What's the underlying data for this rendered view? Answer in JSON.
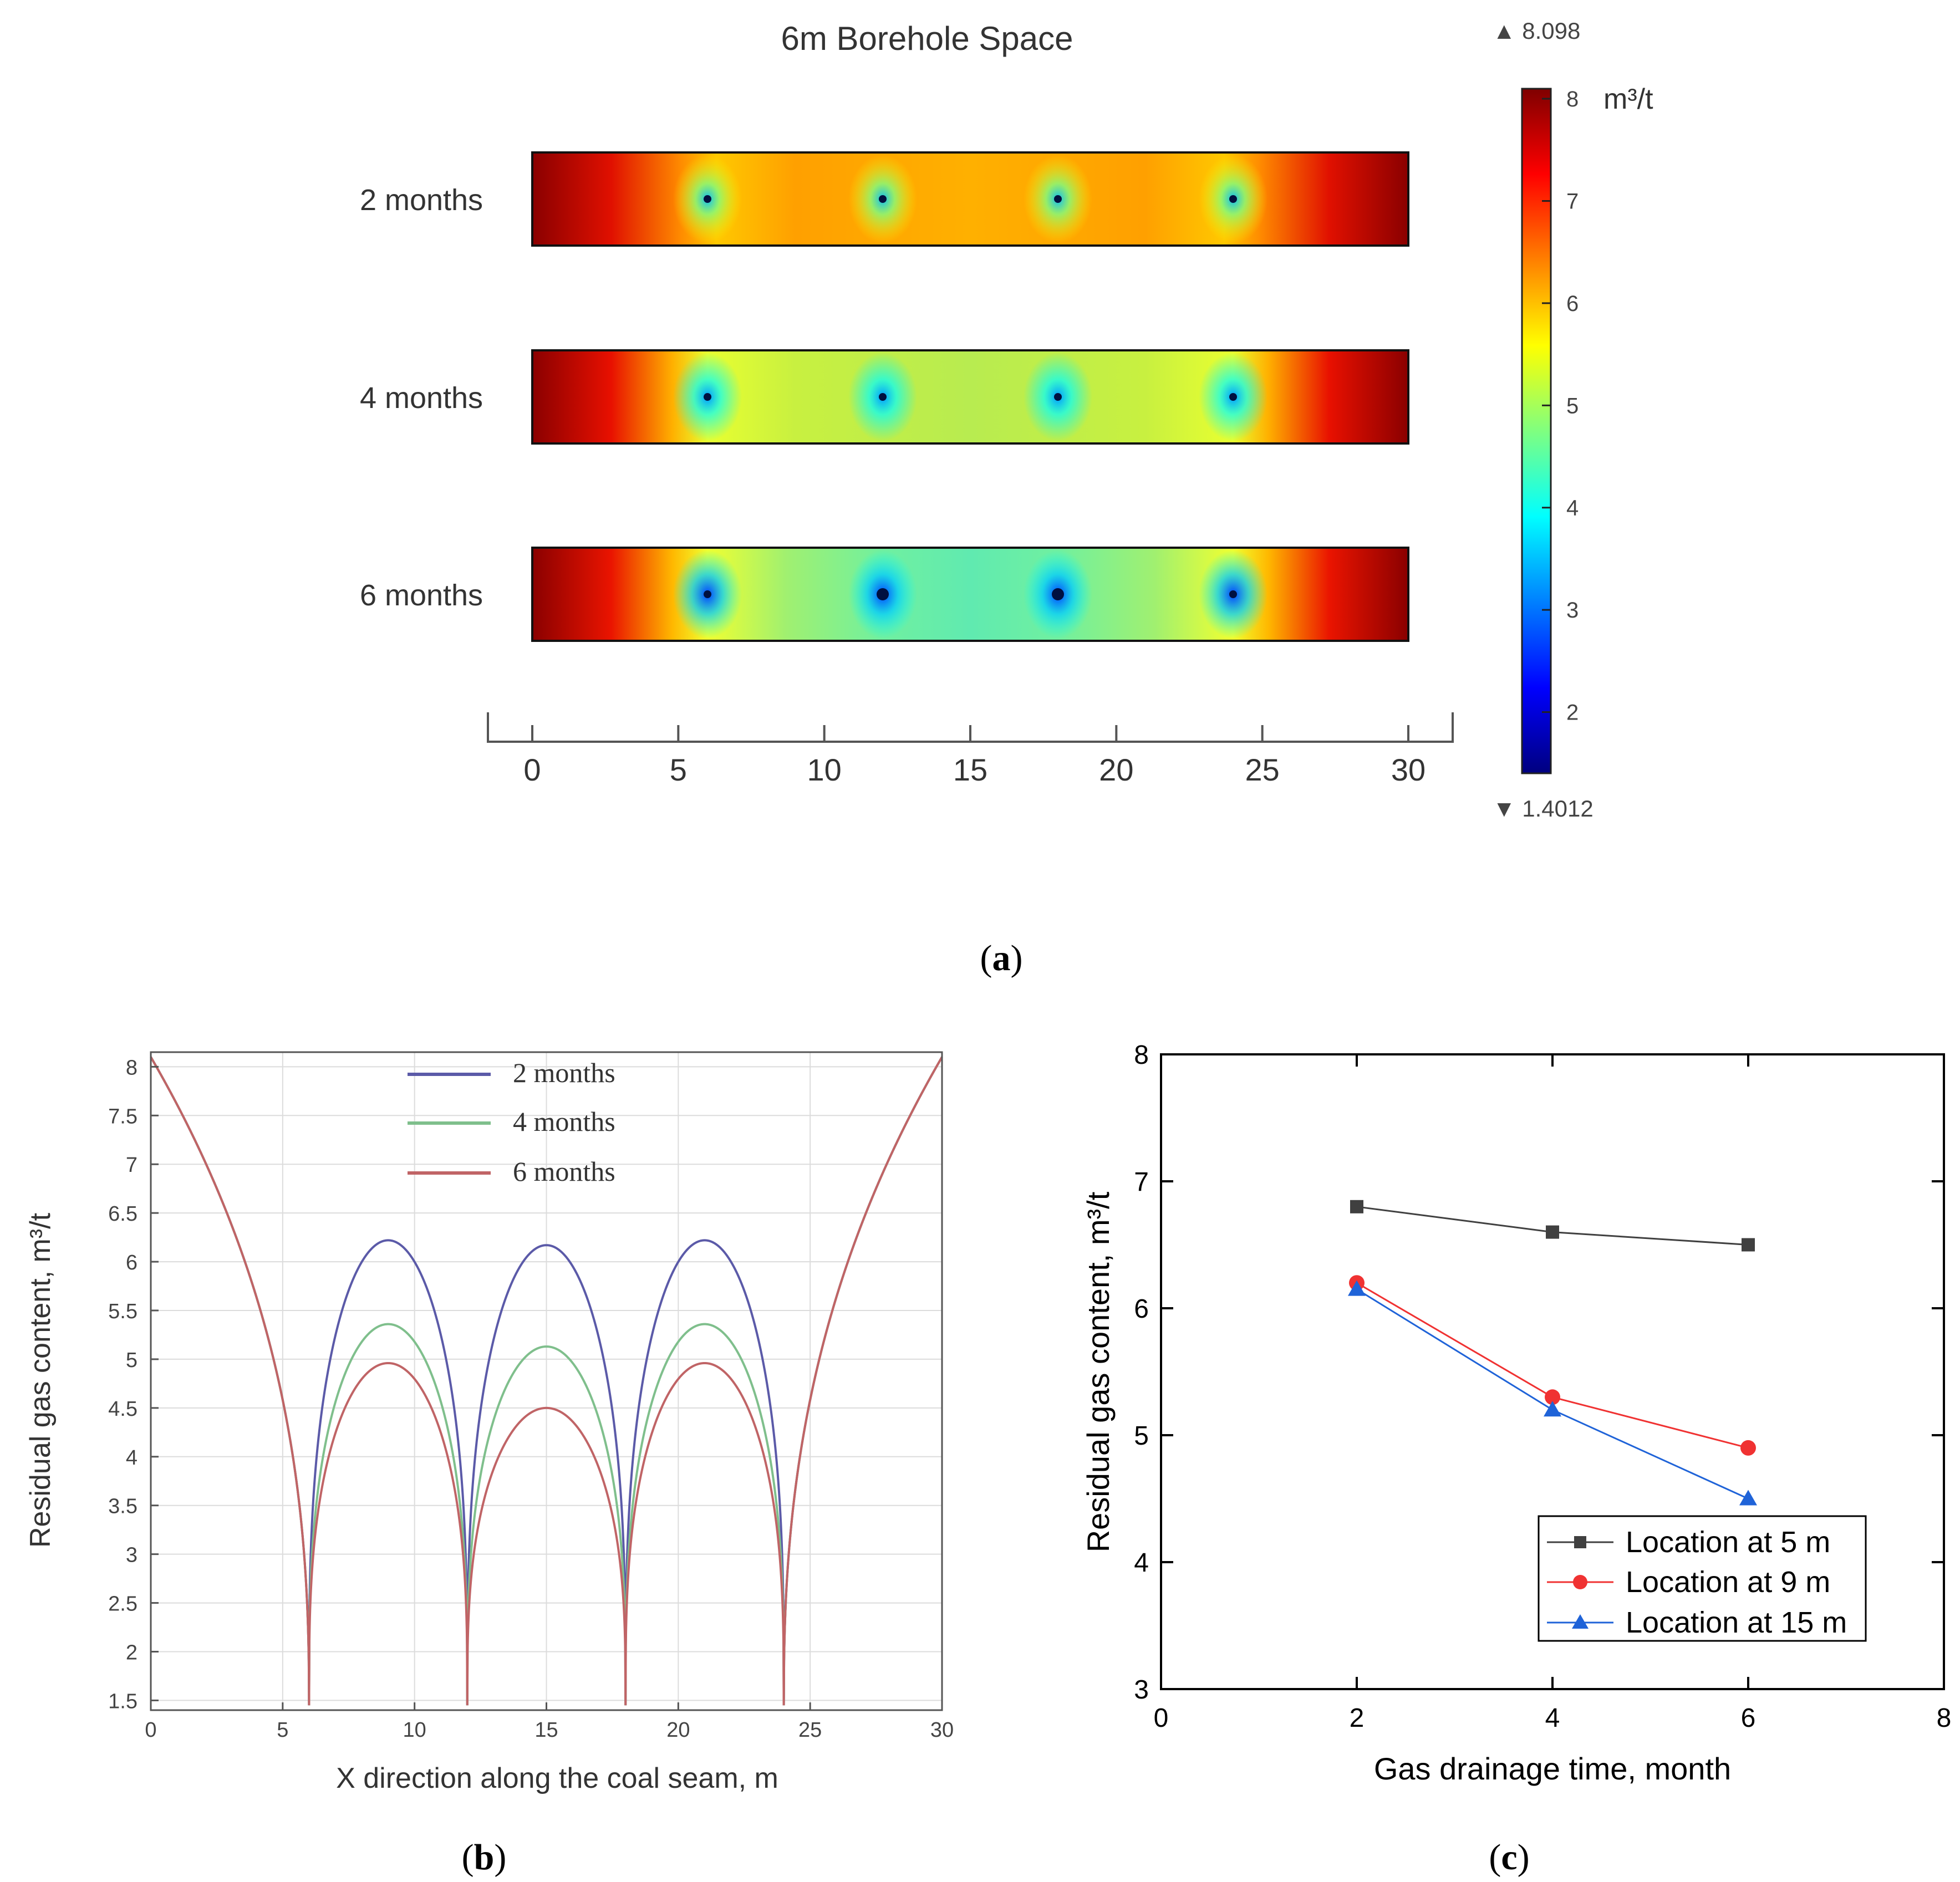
{
  "chart_data": [
    {
      "panel": "a",
      "type": "heatmap",
      "title": "6m Borehole Space",
      "rows": [
        "2 months",
        "4 months",
        "6 months"
      ],
      "borehole_x": [
        6,
        12,
        18,
        24
      ],
      "x_ticks": [
        "0",
        "5",
        "10",
        "15",
        "20",
        "25",
        "30"
      ],
      "xlim": [
        0,
        30
      ],
      "colorbar": {
        "unit": "m³/t",
        "max_label": "▲ 8.098",
        "min_label": "▼ 1.4012",
        "max": 8.098,
        "min": 1.4012,
        "ticks": [
          "8",
          "7",
          "6",
          "5",
          "4",
          "3",
          "2"
        ],
        "colormap": "rainbow"
      },
      "caption_open": "(",
      "caption_letter": "a",
      "caption_close": ")"
    },
    {
      "panel": "b",
      "type": "line",
      "xlabel": "X direction along the coal seam, m",
      "ylabel": "Residual gas content, m³/t",
      "xlim": [
        0,
        30
      ],
      "ylim": [
        1.4,
        8.15
      ],
      "x_ticks": [
        "0",
        "5",
        "10",
        "15",
        "20",
        "25",
        "30"
      ],
      "y_ticks": [
        "1.5",
        "2",
        "2.5",
        "3",
        "3.5",
        "4",
        "4.5",
        "5",
        "5.5",
        "6",
        "6.5",
        "7",
        "7.5",
        "8"
      ],
      "grid": true,
      "legend_position": "top-center",
      "boreholes": [
        6,
        12,
        18,
        24
      ],
      "edge_value": 8.1,
      "borehole_value": 1.45,
      "series": [
        {
          "name": "2 months",
          "color": "#5b5aa8",
          "outer_peak": 6.22,
          "center_peak": 6.17
        },
        {
          "name": "4 months",
          "color": "#7fbf8c",
          "outer_peak": 5.36,
          "center_peak": 5.13
        },
        {
          "name": "6 months",
          "color": "#c06466",
          "outer_peak": 4.96,
          "center_peak": 4.5
        }
      ],
      "caption_open": "(",
      "caption_letter": "b",
      "caption_close": ")"
    },
    {
      "panel": "c",
      "type": "line",
      "xlabel": "Gas drainage time, month",
      "ylabel": "Residual gas content, m³/t",
      "xlim": [
        0,
        8
      ],
      "ylim": [
        3,
        8
      ],
      "x_ticks": [
        "0",
        "2",
        "4",
        "6",
        "8"
      ],
      "y_ticks": [
        "3",
        "4",
        "5",
        "6",
        "7",
        "8"
      ],
      "legend_position": "bottom-right",
      "x": [
        2,
        4,
        6
      ],
      "series": [
        {
          "name": "Location at 5 m",
          "color": "#404040",
          "marker": "square",
          "values": [
            6.8,
            6.6,
            6.5
          ]
        },
        {
          "name": "Location at 9 m",
          "color": "#f03232",
          "marker": "circle",
          "values": [
            6.2,
            5.3,
            4.9
          ]
        },
        {
          "name": "Location at 15 m",
          "color": "#1f63d8",
          "marker": "triangle",
          "values": [
            6.15,
            5.2,
            4.5
          ]
        }
      ],
      "caption_open": "(",
      "caption_letter": "c",
      "caption_close": ")"
    }
  ]
}
